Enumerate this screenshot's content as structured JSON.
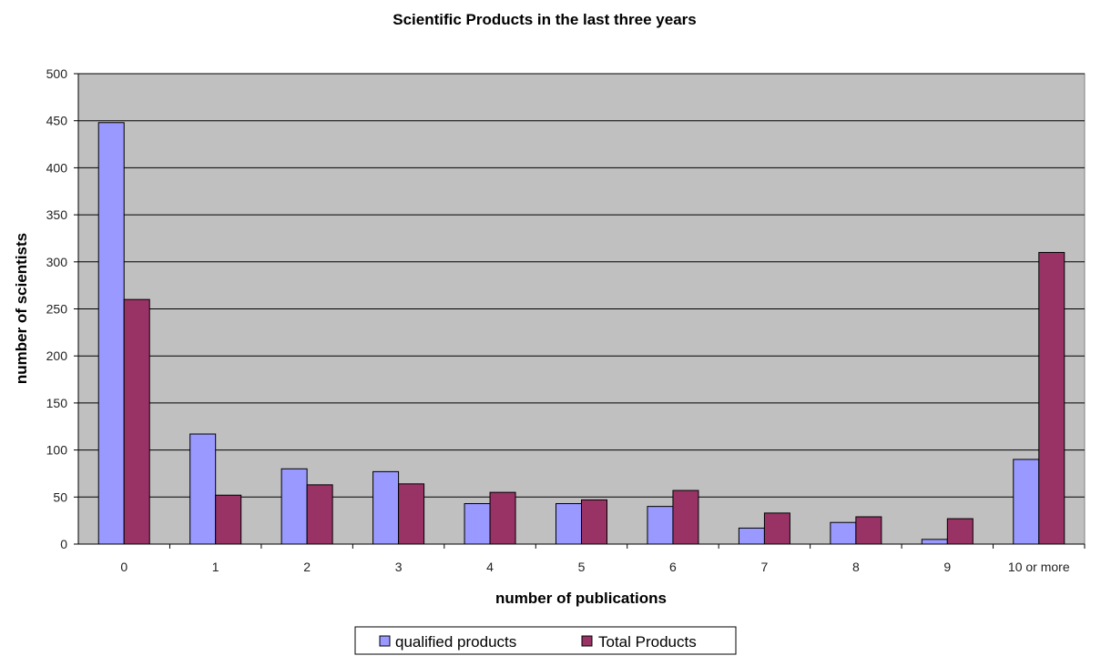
{
  "chart_data": {
    "type": "bar",
    "title": "Scientific Products in the last three years",
    "xlabel": "number of publications",
    "ylabel": "number of scientists",
    "categories": [
      "0",
      "1",
      "2",
      "3",
      "4",
      "5",
      "6",
      "7",
      "8",
      "9",
      "10 or more"
    ],
    "series": [
      {
        "name": "qualified products",
        "color": "#9999ff",
        "values": [
          448,
          117,
          80,
          77,
          43,
          43,
          40,
          17,
          23,
          5,
          90
        ]
      },
      {
        "name": "Total Products",
        "color": "#993366",
        "values": [
          260,
          52,
          63,
          64,
          55,
          47,
          57,
          33,
          29,
          27,
          310
        ]
      }
    ],
    "ylim": [
      0,
      500
    ],
    "yticks": [
      "0",
      "50",
      "100",
      "150",
      "200",
      "250",
      "300",
      "350",
      "400",
      "450",
      "500"
    ],
    "grid": true,
    "legend_position": "bottom",
    "plot_background": "#c0c0c0"
  }
}
